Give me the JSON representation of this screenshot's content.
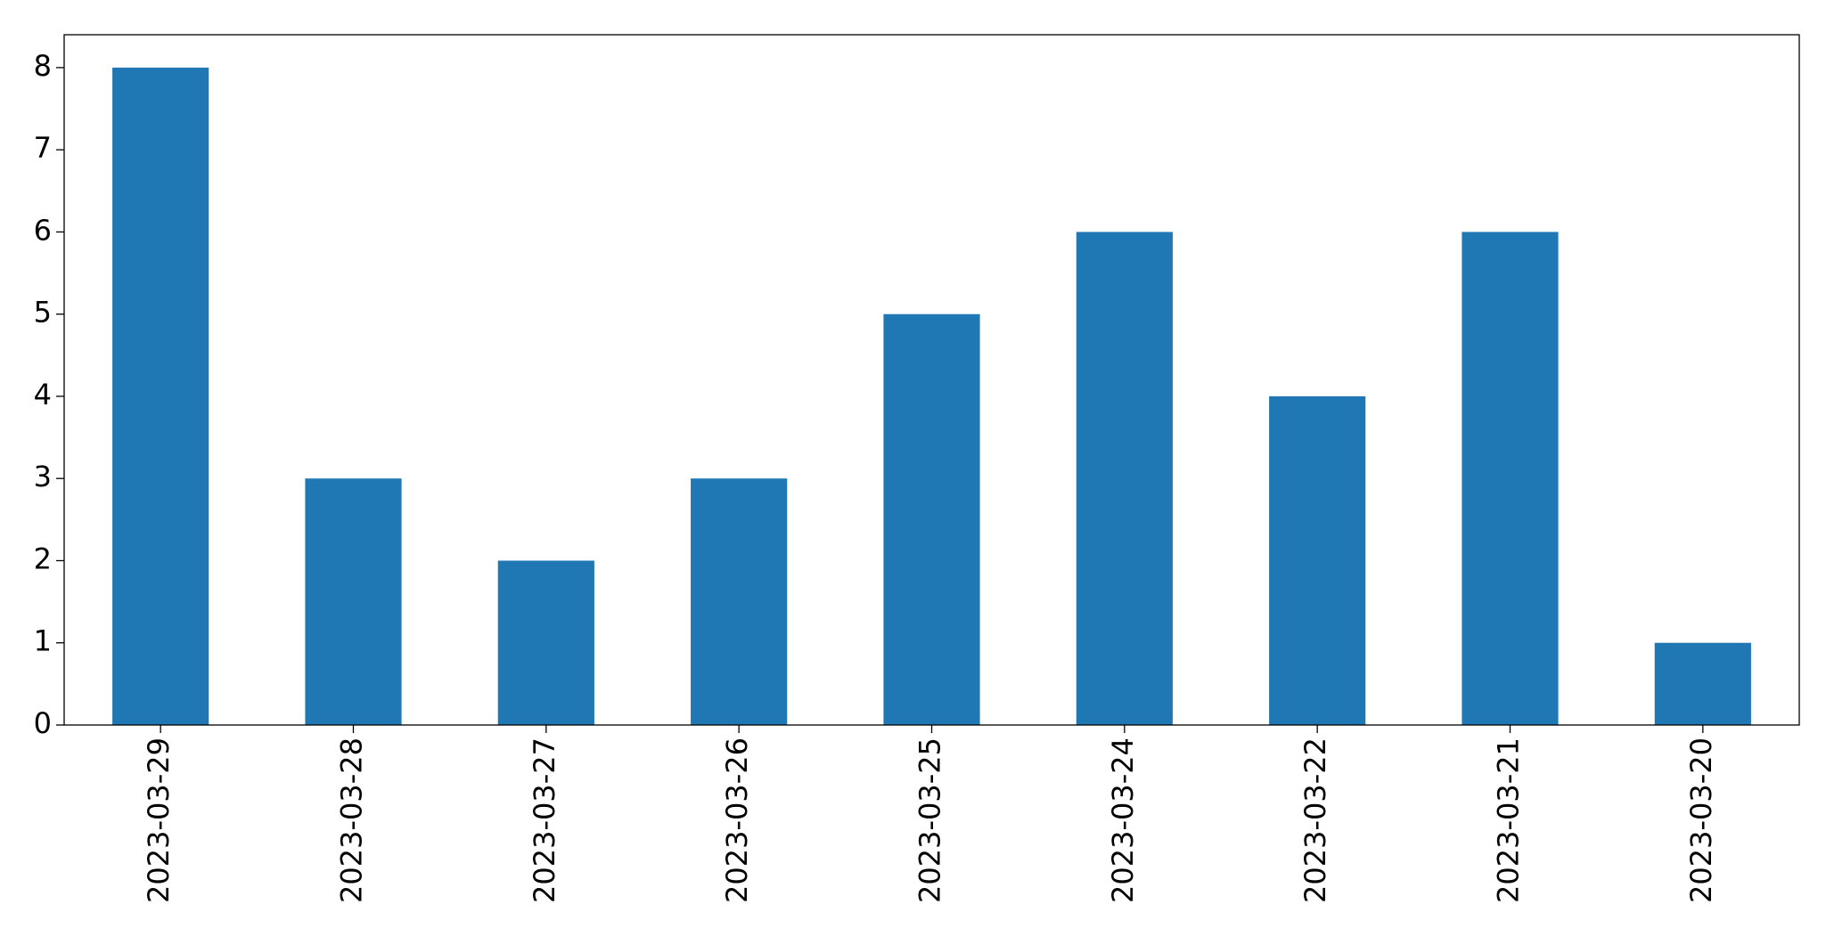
{
  "chart_data": {
    "type": "bar",
    "categories": [
      "2023-03-29",
      "2023-03-28",
      "2023-03-27",
      "2023-03-26",
      "2023-03-25",
      "2023-03-24",
      "2023-03-22",
      "2023-03-21",
      "2023-03-20"
    ],
    "values": [
      8,
      3,
      2,
      3,
      5,
      6,
      4,
      6,
      1
    ],
    "color": "#1f77b4",
    "ylim": [
      0,
      8.4
    ],
    "yticks": [
      0,
      1,
      2,
      3,
      4,
      5,
      6,
      7,
      8
    ],
    "grid": false
  }
}
